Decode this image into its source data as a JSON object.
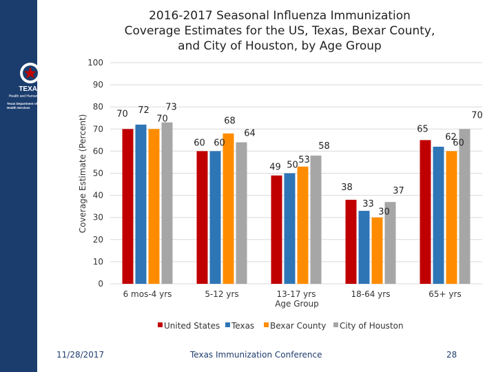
{
  "slide": {
    "title_lines": [
      "2016-2017 Seasonal Influenza Immunization",
      "Coverage Estimates for the US, Texas, Bexar County,",
      "and City of Houston, by Age Group"
    ],
    "footer_date": "11/28/2017",
    "footer_center": "Texas Immunization Conference",
    "page_number": "28"
  },
  "logo": {
    "line1": "TEXAS",
    "line2": "Health and Human Services",
    "line3": "Texas Department of State",
    "line4": "Health Services"
  },
  "colors": {
    "sidebar": "#1b3d6e",
    "united_states": "#c00000",
    "texas": "#2e75b6",
    "bexar_county": "#ff8c00",
    "city_of_houston": "#a6a6a6"
  },
  "chart_data": {
    "type": "bar",
    "title": "2016-2017 Seasonal Influenza Immunization Coverage Estimates for the US, Texas, Bexar County, and City of Houston, by Age Group",
    "xlabel": "Age Group",
    "ylabel": "Coverage Estimate (Percent)",
    "ylim": [
      0,
      100
    ],
    "yticks": [
      0,
      10,
      20,
      30,
      40,
      50,
      60,
      70,
      80,
      90,
      100
    ],
    "grid": true,
    "legend_position": "bottom",
    "categories": [
      "6 mos-4 yrs",
      "5-12 yrs",
      "13-17 yrs",
      "18-64 yrs",
      "65+ yrs"
    ],
    "series": [
      {
        "name": "United States",
        "values": [
          70,
          60,
          49,
          38,
          65
        ]
      },
      {
        "name": "Texas",
        "values": [
          72,
          60,
          50,
          33,
          62
        ]
      },
      {
        "name": "Bexar County",
        "values": [
          70,
          68,
          53,
          30,
          60
        ]
      },
      {
        "name": "City of Houston",
        "values": [
          73,
          64,
          58,
          37,
          70
        ]
      }
    ]
  }
}
